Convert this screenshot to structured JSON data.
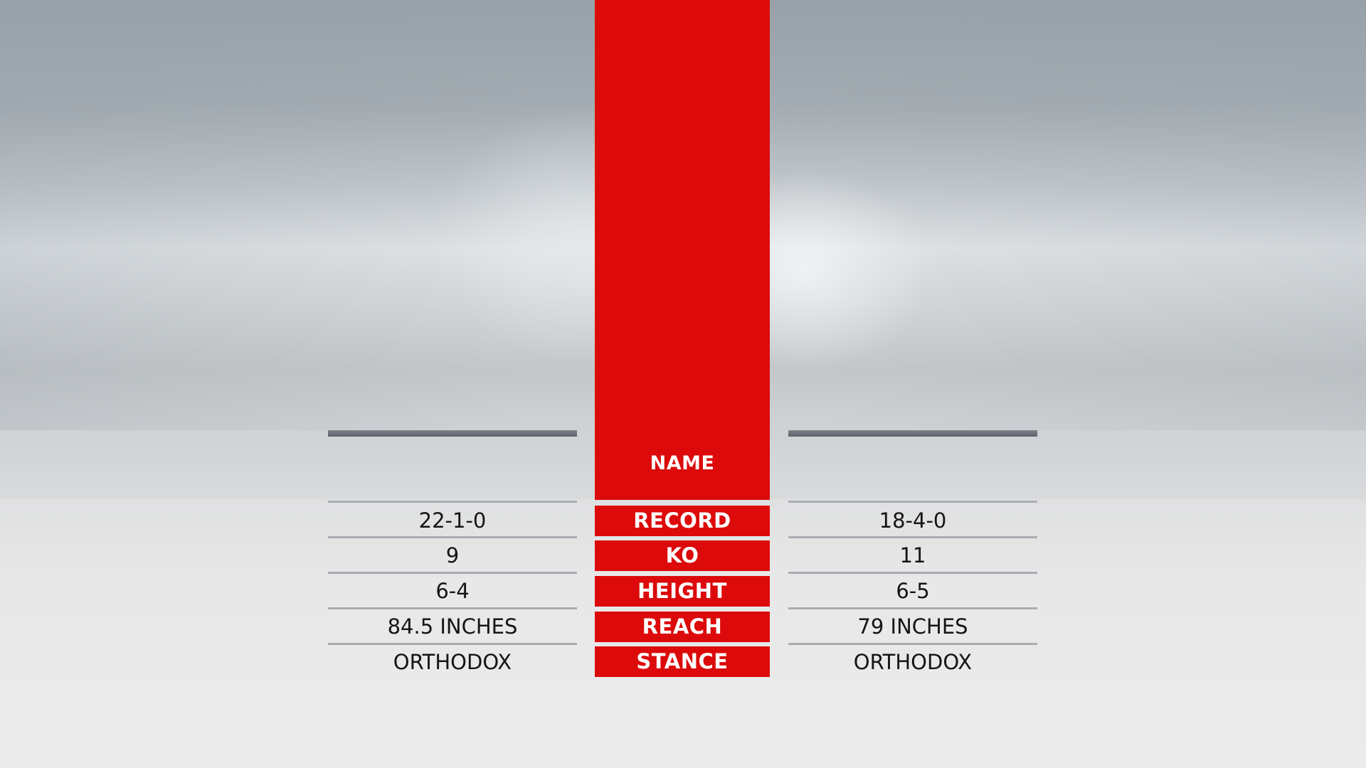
{
  "header": {
    "name_label": "NAME"
  },
  "categories": [
    "RECORD",
    "KO",
    "HEIGHT",
    "REACH",
    "STANCE"
  ],
  "left_fighter": {
    "values": [
      "22-1-0",
      "9",
      "6-4",
      "84.5 INCHES",
      "ORTHODOX"
    ]
  },
  "right_fighter": {
    "values": [
      "18-4-0",
      "11",
      "6-5",
      "79 INCHES",
      "ORTHODOX"
    ]
  },
  "colors": {
    "accent_red": "#dc0a0a",
    "divider": "#a9acb1",
    "fighter_bar": "#6b6f77",
    "text_dark": "#151515",
    "text_light": "#ffffff"
  }
}
